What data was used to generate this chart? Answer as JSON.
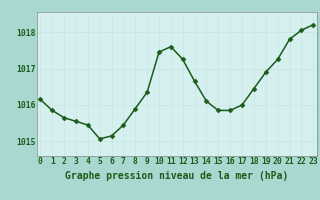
{
  "x": [
    0,
    1,
    2,
    3,
    4,
    5,
    6,
    7,
    8,
    9,
    10,
    11,
    12,
    13,
    14,
    15,
    16,
    17,
    18,
    19,
    20,
    21,
    22,
    23
  ],
  "y": [
    1016.15,
    1015.85,
    1015.65,
    1015.55,
    1015.45,
    1015.07,
    1015.15,
    1015.45,
    1015.9,
    1016.35,
    1017.45,
    1017.6,
    1017.25,
    1016.65,
    1016.1,
    1015.85,
    1015.85,
    1016.0,
    1016.45,
    1016.9,
    1017.25,
    1017.8,
    1018.05,
    1018.2
  ],
  "line_color": "#1a5c1a",
  "marker": "D",
  "marker_size": 2.5,
  "plot_bg_color": "#d6f0f0",
  "bottom_bg_color": "#a8d8d0",
  "fig_bg_color": "#a8d8d0",
  "grid_color": "#b0dcd8",
  "axis_color": "#555555",
  "xlabel": "Graphe pression niveau de la mer (hPa)",
  "xlabel_color": "#1a5c1a",
  "tick_label_color": "#1a5c1a",
  "ylim": [
    1014.6,
    1018.55
  ],
  "xlim": [
    -0.3,
    23.3
  ],
  "yticks": [
    1015,
    1016,
    1017,
    1018
  ],
  "xticks": [
    0,
    1,
    2,
    3,
    4,
    5,
    6,
    7,
    8,
    9,
    10,
    11,
    12,
    13,
    14,
    15,
    16,
    17,
    18,
    19,
    20,
    21,
    22,
    23
  ],
  "tick_fontsize": 5.8,
  "xlabel_fontsize": 7.0,
  "line_width": 1.1
}
